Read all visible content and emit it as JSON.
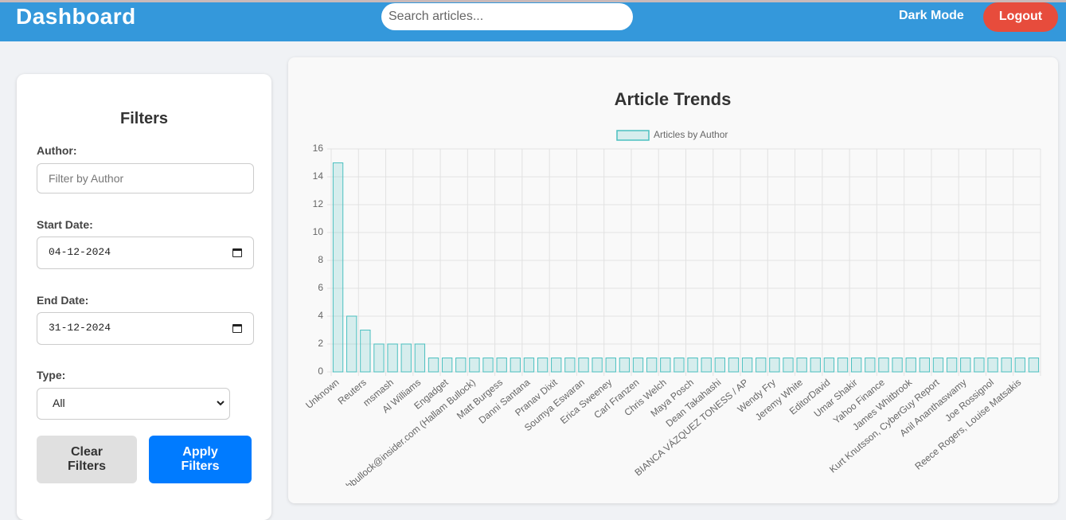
{
  "header": {
    "title": "Dashboard",
    "search_placeholder": "Search articles...",
    "dark_mode": "Dark Mode",
    "logout": "Logout"
  },
  "filters": {
    "title": "Filters",
    "author_label": "Author:",
    "author_placeholder": "Filter by Author",
    "start_label": "Start Date:",
    "start_value": "04-12-2024",
    "end_label": "End Date:",
    "end_value": "31-12-2024",
    "type_label": "Type:",
    "type_value": "All",
    "clear": "Clear Filters",
    "apply": "Apply Filters"
  },
  "chart_data": {
    "type": "bar",
    "title": "Article Trends",
    "categories": [
      "Unknown",
      null,
      "Reuters",
      null,
      "msmash",
      null,
      "Al Williams",
      null,
      "Engadget",
      null,
      "hbullock@insider.com (Hallam Bullock)",
      null,
      "Matt Burgess",
      null,
      "Danni Santana",
      null,
      "Pranav Dixit",
      null,
      "Soumya Eswaran",
      null,
      "Erica Sweeney",
      null,
      "Carl Franzen",
      null,
      "Chris Welch",
      null,
      "Maya Posch",
      null,
      "Dean Takahashi",
      null,
      "BIANCA VÁZQUEZ TONESS / AP",
      null,
      "Wendy Fry",
      null,
      "Jeremy White",
      null,
      "EditorDavid",
      null,
      "Umar Shakir",
      null,
      "Yahoo Finance",
      null,
      "James Whitbrook",
      null,
      "Kurt Knutsson, CyberGuy Report",
      null,
      "Anil Ananthaswamy",
      null,
      "Joe Rossignol",
      null,
      "Reece Rogers, Louise Matsakis",
      null
    ],
    "series": [
      {
        "name": "Articles by Author",
        "color": "rgba(75,192,192,0.2)",
        "border_color": "rgb(75,192,192)",
        "values": [
          15,
          4,
          3,
          2,
          2,
          2,
          2,
          1,
          1,
          1,
          1,
          1,
          1,
          1,
          1,
          1,
          1,
          1,
          1,
          1,
          1,
          1,
          1,
          1,
          1,
          1,
          1,
          1,
          1,
          1,
          1,
          1,
          1,
          1,
          1,
          1,
          1,
          1,
          1,
          1,
          1,
          1,
          1,
          1,
          1,
          1,
          1,
          1,
          1,
          1,
          1,
          1
        ]
      }
    ],
    "ylim": [
      0,
      16
    ],
    "yticks": [
      0,
      2,
      4,
      6,
      8,
      10,
      12,
      14,
      16
    ],
    "grid": true
  }
}
